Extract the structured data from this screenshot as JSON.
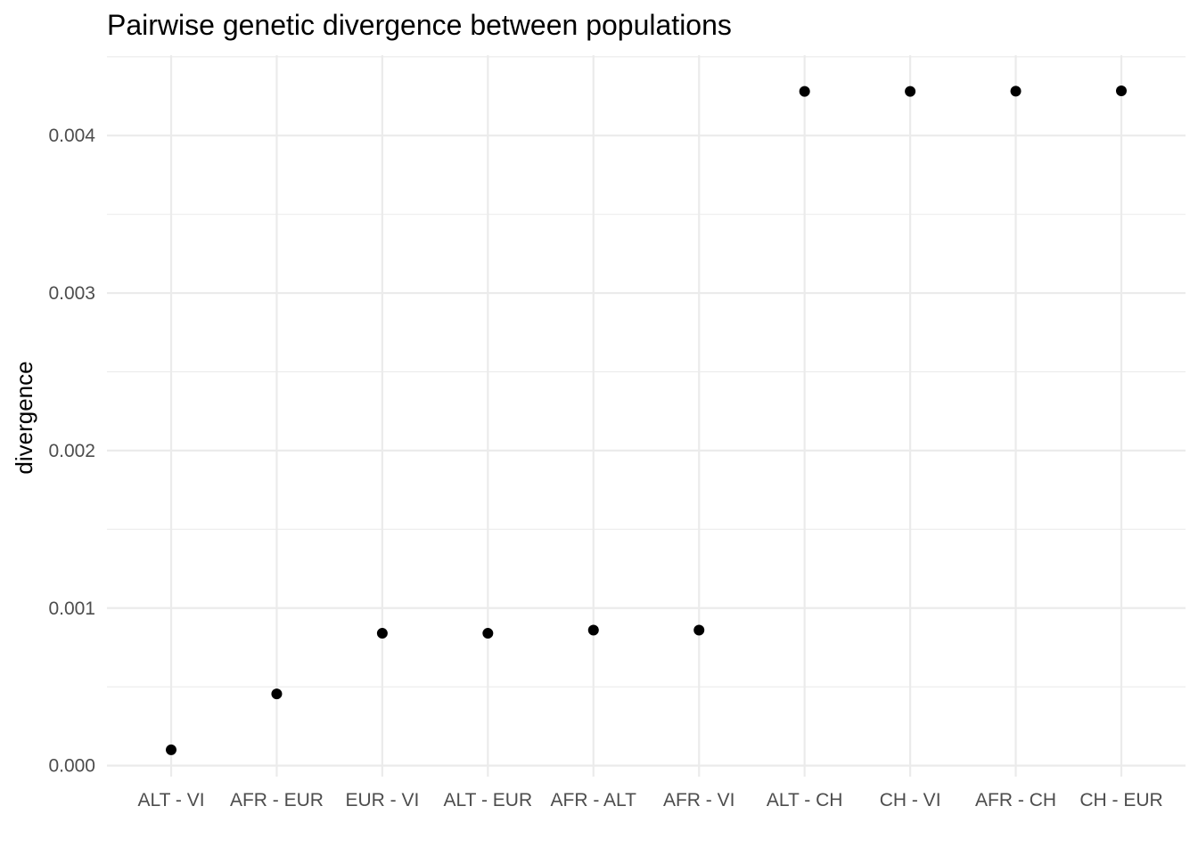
{
  "chart_data": {
    "type": "scatter",
    "title": "Pairwise genetic divergence between populations",
    "xlabel": "",
    "ylabel": "divergence",
    "categories": [
      "ALT - VI",
      "AFR - EUR",
      "EUR - VI",
      "ALT - EUR",
      "AFR - ALT",
      "AFR - VI",
      "ALT - CH",
      "CH - VI",
      "AFR - CH",
      "CH - EUR"
    ],
    "series": [
      {
        "values": [
          0.0001,
          0.000455,
          0.00084,
          0.00084,
          0.00086,
          0.00086,
          0.00428,
          0.00428,
          0.004282,
          0.004284
        ]
      }
    ],
    "y_ticks": [
      "0.000",
      "0.001",
      "0.002",
      "0.003",
      "0.004"
    ],
    "ylim": [
      -7e-05,
      0.00451
    ],
    "grid": true,
    "legend": "none",
    "point_color": "#000000",
    "grid_color": "#ebebeb"
  }
}
